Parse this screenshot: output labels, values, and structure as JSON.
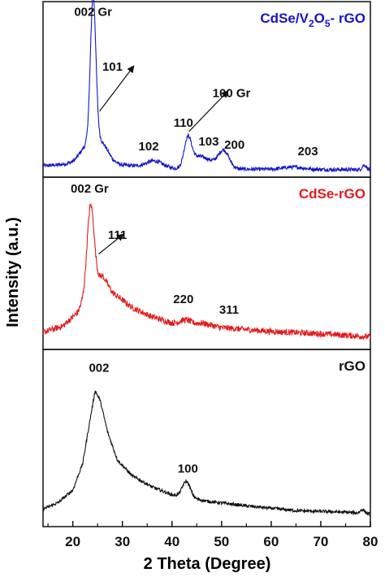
{
  "chart_data": {
    "type": "line",
    "xlabel": "2 Theta (Degree)",
    "ylabel": "Intensity (a.u.)",
    "xlim": [
      14,
      80
    ],
    "xticks": [
      20,
      30,
      40,
      50,
      60,
      70,
      80
    ],
    "yticks": "none",
    "grid": false,
    "legend": "per-panel label, top-right",
    "panels": [
      {
        "name": "CdSe/V2O5- rGO",
        "label_parts": [
          {
            "text": "CdSe/V",
            "sub": false
          },
          {
            "text": "2",
            "sub": true
          },
          {
            "text": "O",
            "sub": false
          },
          {
            "text": "5",
            "sub": true
          },
          {
            "text": "- rGO",
            "sub": false
          }
        ],
        "color": "#1515c8",
        "ylim": [
          0,
          105
        ],
        "series": {
          "baseline": [
            [
              14,
              3
            ],
            [
              20,
              4.5
            ],
            [
              22,
              7
            ],
            [
              30,
              3.5
            ],
            [
              40,
              1.5
            ],
            [
              50,
              1
            ],
            [
              80,
              0.6
            ]
          ],
          "peaks": [
            {
              "x": 24.1,
              "height": 93,
              "width": 0.55
            },
            {
              "x": 24.1,
              "height": 12,
              "width": 2.0
            },
            {
              "x": 26.2,
              "height": 5,
              "width": 1.2
            },
            {
              "x": 36.5,
              "height": 4,
              "width": 1.6
            },
            {
              "x": 43.2,
              "height": 19,
              "width": 0.75
            },
            {
              "x": 45.3,
              "height": 7,
              "width": 1.3
            },
            {
              "x": 47.6,
              "height": 4,
              "width": 1.2
            },
            {
              "x": 50.4,
              "height": 12,
              "width": 1.1
            },
            {
              "x": 64.5,
              "height": 1.5,
              "width": 2.0
            },
            {
              "x": 78.8,
              "height": 3,
              "width": 0.4
            }
          ],
          "noise": 1.2
        },
        "annotations": [
          {
            "text": "002 Gr",
            "x": 24.1,
            "y": 99
          },
          {
            "text": "101",
            "x": 28,
            "y": 64
          },
          {
            "text": "102",
            "x": 35.3,
            "y": 13
          },
          {
            "text": "110",
            "x": 42.3,
            "y": 28
          },
          {
            "text": "103",
            "x": 47.4,
            "y": 16
          },
          {
            "text": "100 Gr",
            "x": 52,
            "y": 47
          },
          {
            "text": "200",
            "x": 52.6,
            "y": 14
          },
          {
            "text": "203",
            "x": 67.4,
            "y": 10
          }
        ]
      },
      {
        "name": "CdSe-rGO",
        "label_parts": [
          {
            "text": "CdSe-rGO",
            "sub": false
          }
        ],
        "color": "#e31a1c",
        "ylim": [
          0,
          105
        ],
        "series": {
          "baseline": [
            [
              14,
              7
            ],
            [
              18,
              11
            ],
            [
              21,
              20
            ],
            [
              23,
              34
            ],
            [
              26,
              44
            ],
            [
              28,
              33
            ],
            [
              32,
              23
            ],
            [
              36,
              17
            ],
            [
              40,
              13
            ],
            [
              43,
              12
            ],
            [
              46,
              13
            ],
            [
              50,
              10
            ],
            [
              60,
              7.5
            ],
            [
              70,
              6
            ],
            [
              80,
              4
            ]
          ],
          "peaks": [
            {
              "x": 23.6,
              "height": 54,
              "width": 0.7
            },
            {
              "x": 42.7,
              "height": 3,
              "width": 1.0
            }
          ],
          "noise": 2.0
        },
        "annotations": [
          {
            "text": "002 Gr",
            "x": 23.4,
            "y": 98
          },
          {
            "text": "111",
            "x": 29,
            "y": 68
          },
          {
            "text": "220",
            "x": 42.3,
            "y": 26
          },
          {
            "text": "311",
            "x": 51.5,
            "y": 19
          }
        ]
      },
      {
        "name": "rGO",
        "label_parts": [
          {
            "text": "rGO",
            "sub": false
          }
        ],
        "color": "#111111",
        "ylim": [
          0,
          105
        ],
        "series": {
          "baseline": [
            [
              14,
              7
            ],
            [
              17,
              11
            ],
            [
              20,
              19
            ],
            [
              22,
              36
            ],
            [
              23.5,
              64
            ],
            [
              24.5,
              82
            ],
            [
              25.5,
              76
            ],
            [
              27,
              56
            ],
            [
              29,
              38
            ],
            [
              32,
              28
            ],
            [
              36,
              21
            ],
            [
              40,
              16
            ],
            [
              42,
              15
            ],
            [
              47,
              12
            ],
            [
              55,
              9
            ],
            [
              65,
              6
            ],
            [
              75,
              5
            ],
            [
              80,
              4
            ]
          ],
          "peaks": [
            {
              "x": 42.9,
              "height": 10,
              "width": 0.8
            },
            {
              "x": 78.4,
              "height": 2.5,
              "width": 0.4
            }
          ],
          "noise": 1.0
        },
        "annotations": [
          {
            "text": "002",
            "x": 25.3,
            "y": 94
          },
          {
            "text": "100",
            "x": 43.2,
            "y": 30
          }
        ]
      }
    ]
  },
  "arrows": [
    {
      "panel": 0,
      "from": [
        25.4,
        38
      ],
      "to": [
        32.3,
        67
      ]
    },
    {
      "panel": 0,
      "from": [
        43.4,
        25
      ],
      "to": [
        51.3,
        51
      ]
    },
    {
      "panel": 1,
      "from": [
        25.2,
        58
      ],
      "to": [
        30.2,
        71
      ]
    }
  ]
}
